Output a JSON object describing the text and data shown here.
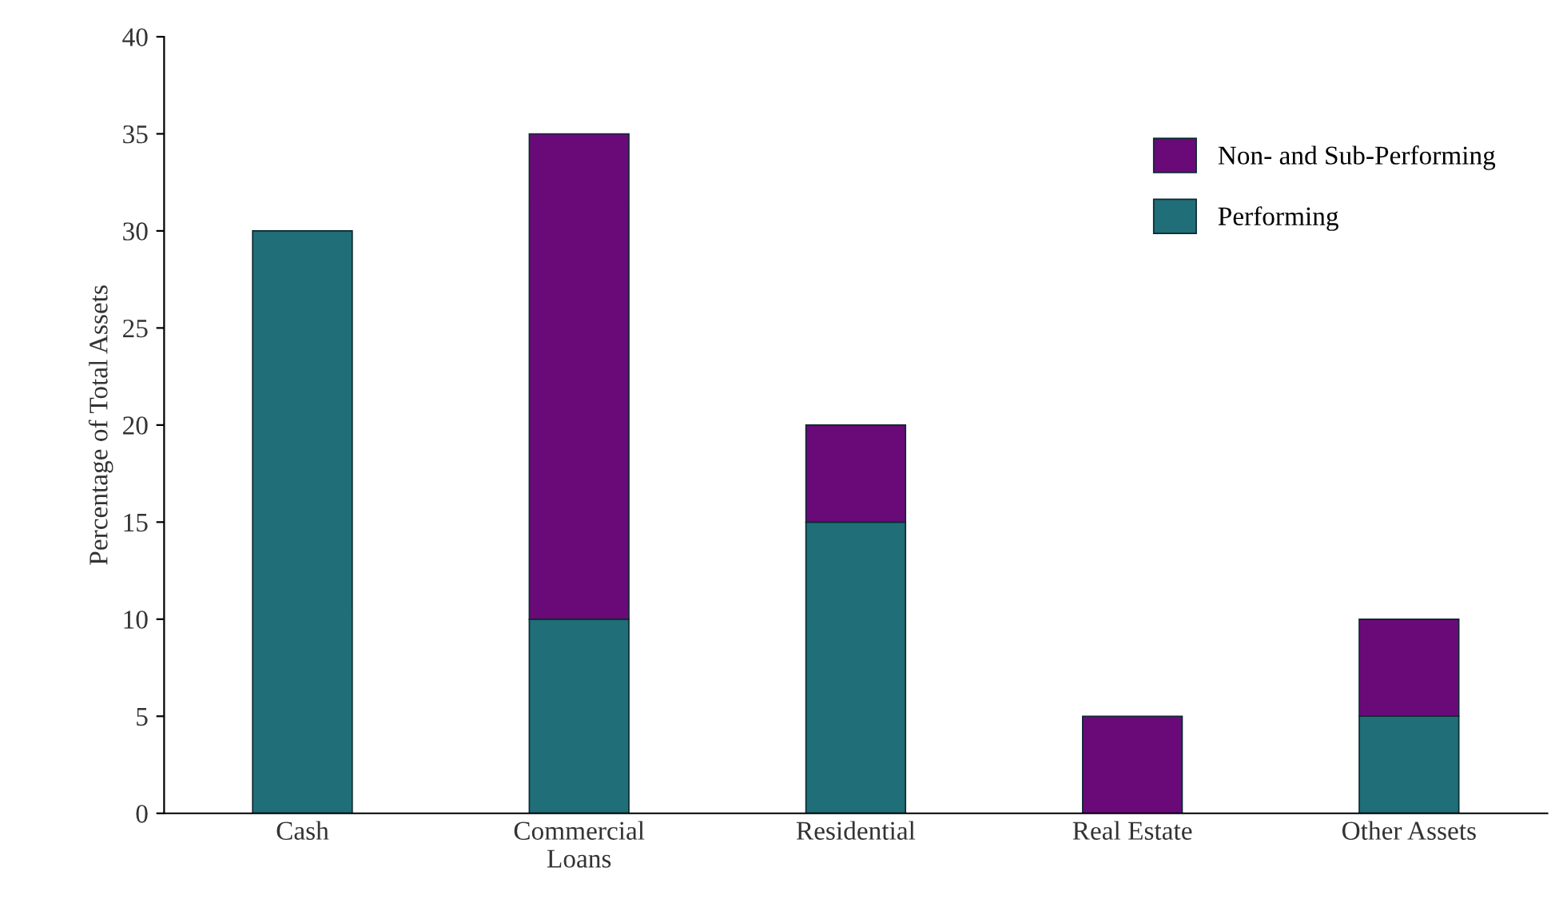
{
  "chart_data": {
    "type": "bar",
    "stacked": true,
    "ylabel": "Percentage of Total Assets",
    "categories": [
      "Cash",
      "Commercial\nLoans",
      "Residential",
      "Real Estate",
      "Other Assets"
    ],
    "series": [
      {
        "name": "Performing",
        "color": "#1f6e78",
        "values": [
          30,
          10,
          15,
          null,
          5
        ]
      },
      {
        "name": "Non- and Sub-Performing",
        "color": "#6a0a78",
        "values": [
          null,
          25,
          5,
          5,
          5
        ]
      }
    ],
    "ylim": [
      0,
      40
    ],
    "yticks": [
      0,
      5,
      10,
      15,
      20,
      25,
      30,
      35,
      40
    ],
    "grid": false,
    "legend": "top right"
  }
}
